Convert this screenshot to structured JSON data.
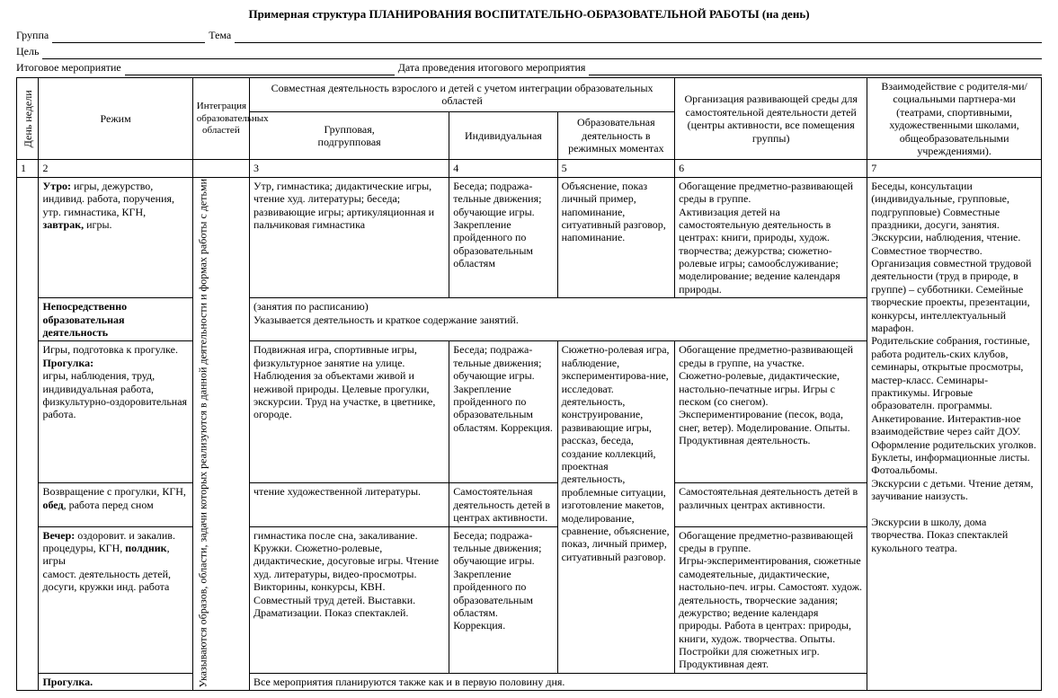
{
  "title": "Примерная структура  ПЛАНИРОВАНИЯ ВОСПИТАТЕЛЬНО-ОБРАЗОВАТЕЛЬНОЙ  РАБОТЫ (на день)",
  "header": {
    "group": "Группа",
    "theme": "Тема",
    "goal": "Цель",
    "final_event": "Итоговое мероприятие",
    "final_event_date": "Дата проведения итогового мероприятия"
  },
  "columns": {
    "day": "День недели",
    "regime": "Режим",
    "integration": "Интеграция образовательных областей",
    "joint_activity": "Совместная деятельность  взрослого и  детей с учетом интеграции образовательных областей",
    "group_sub": "Групповая,\nподгрупповая",
    "individual": "Индивидуальная",
    "regime_moments": "Образовательная деятельность в режимных моментах",
    "organization": "Организация развивающей среды для самостоятельной  деятельности детей (центры активности, все помещения группы)",
    "interaction": "Взаимодействие с родителя-ми/ социальными партнера-ми (театрами, спортивными, художественными школами, общеобразовательными учреждениями)."
  },
  "numrow": [
    "1",
    "2",
    "",
    "3",
    "4",
    "5",
    "6",
    "7"
  ],
  "col2_vertical": "Указываются образов, области, задачи которых  реализуются в данной деятельности и формах работы с детьми",
  "rows": {
    "morning": {
      "regime_html": "<b>Утро:</b> игры, дежурство, индивид.  работа, поручения,  утр. гимнастика, КГН,\n<b>завтрак,</b>        игры.",
      "group": "Утр, гимнастика; дидактические игры, чтение худ. литературы; беседа;  развивающие игры; артикуляционная и пальчиковая гимнастика",
      "individual": "Беседа; подража-тельные движения; обучающие игры. Закрепление пройденного по образовательным областям",
      "regime_moments": "Объяснение, показ  личный пример, напоминание, ситуативный  разговор, напоминание.",
      "organization": "Обогащение предметно-развивающей среды в группе.\nАктивизация детей на самостоятельную деятельность в центрах: книги, природы,  худож. творчества; дежурства; сюжетно-ролевые игры; самообслуживание; моделирование; ведение календаря природы."
    },
    "nod": {
      "regime_html": "<b>Непосредственно образовательная деятельность</b>",
      "merged": "(занятия по расписанию)\nУказывается деятельность и краткое содержание занятий."
    },
    "walk": {
      "regime_html": "Игры, подготовка к прогулке.\n<b>Прогулка:</b>\nигры,     наблюдения, труд, индивидуальная работа, физкультурно-оздоровительная  работа.",
      "group": "Подвижная игра, спортивные игры, физкультурное занятие на улице. Наблюдения за объектами живой и неживой природы.  Целевые прогулки, экскурсии. Труд на участке, в цветнике, огороде.",
      "individual": "Беседа; подража-тельные движения; обучающие игры. Закрепление пройденного по образовательным областям. Коррекция.",
      "regime_moments": "Сюжетно-ролевая игра, наблюдение, экспериментирова-ние, исследоват. деятельность, конструирование, развивающие игры, рассказ, беседа, создание коллекций, проектная деятельность, проблемные ситуации, изготовление макетов, моделирование, сравнение, объяснение, показ, личный пример, ситуативный  разговор.",
      "organization": "Обогащение предметно-развивающей среды в группе, на участке.\nСюжетно-ролевые, дидактические, настольно-печатные игры. Игры с песком (со снегом).\nЭкспериментирование (песок, вода, снег, ветер). Моделирование. Опыты. Продуктивная деятельность."
    },
    "return": {
      "regime_html": "Возвращение с прогулки, КГН, <b>обед</b>, работа перед сном",
      "group": "чтение художественной литературы.",
      "individual": "Самостоятельная деятельность детей в центрах активности.",
      "organization": "Самостоятельная деятельность детей в различных центрах активности."
    },
    "evening": {
      "regime_html": "<b>Вечер:</b> оздоровит. и закалив.  процедуры, КГН, <b>полдник</b>, игры\nсамост. деятельность детей, досуги, кружки инд. работа",
      "group": "гимнастика после сна, закаливание. Кружки. Сюжетно-ролевые, дидактические, досуговые  игры. Чтение худ. литературы, видео-просмотры. Викторины, конкурсы, КВН. Совместный труд детей. Выставки. Драматизации. Показ спектаклей.",
      "individual": "Беседа; подража-тельные движения; обучающие игры. Закрепление пройденного по образовательным областям.\nКоррекция.",
      "organization": "Обогащение предметно-развивающей среды в группе.\nИгры-экспериментирования, сюжетные самодеятельные, дидактические, настольно-печ. игры. Самостоят. худож. деятельность, творческие задания; дежурство; ведение календаря природы. Работа в центрах: природы, книги, худож. творчества. Опыты. Постройки для сюжетных игр. Продуктивная деят."
    },
    "walk2": {
      "regime_html": "<b>Прогулка.</b>",
      "merged": "Все мероприятия планируются  также как и  в первую половину дня."
    }
  },
  "interaction_col7": "Беседы, консультации (индивидуальные, групповые, подгрупповые) Совместные праздники, досуги,  занятия.\nЭкскурсии, наблюдения, чтение. Совместное творчество.\nОрганизация совместной трудовой деятельности (труд в природе, в группе) – субботники. Семейные творческие проекты, презентации, конкурсы, интеллектуальный марафон.\nРодительские собрания, гостиные, работа родитель-ских клубов, семинары, открытые просмотры, мастер-класс. Семинары-практикумы. Игровые образователн. программы. Анкетирование. Интерактив-ное  взаимодействие через сайт ДОУ. Оформление родительских уголков. Буклеты, информационные листы. Фотоальбомы.\nЭкскурсии с детьми. Чтение детям, заучивание наизусть.\n\nЭкскурсии в школу, дома творчества. Показ спектаклей кукольного театра."
}
